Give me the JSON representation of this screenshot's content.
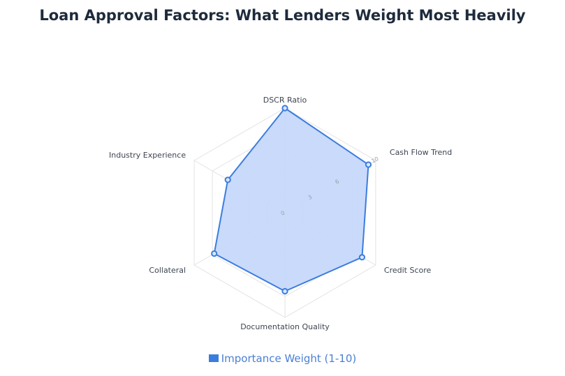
{
  "chart_data": {
    "type": "radar",
    "title": "Loan Approval Factors: What Lenders Weight Most Heavily",
    "axes": [
      "DSCR Ratio",
      "Cash Flow Trend",
      "Credit Score",
      "Documentation Quality",
      "Collateral",
      "Industry Experience"
    ],
    "series": [
      {
        "name": "Importance Weight (1-10)",
        "values": [
          10,
          9.2,
          8.5,
          7.5,
          7.8,
          6.3
        ]
      }
    ],
    "rmin": 0,
    "rmax": 10,
    "ticks": [
      "0",
      "3",
      "6",
      "10"
    ],
    "tick_values": [
      0,
      3,
      6,
      10
    ],
    "grid": true,
    "legend_position": "bottom",
    "colors": {
      "line": "#3b7ddd",
      "fill": "#c6d8fb",
      "grid": "#e3e3e3",
      "text": "#3d4450"
    }
  }
}
